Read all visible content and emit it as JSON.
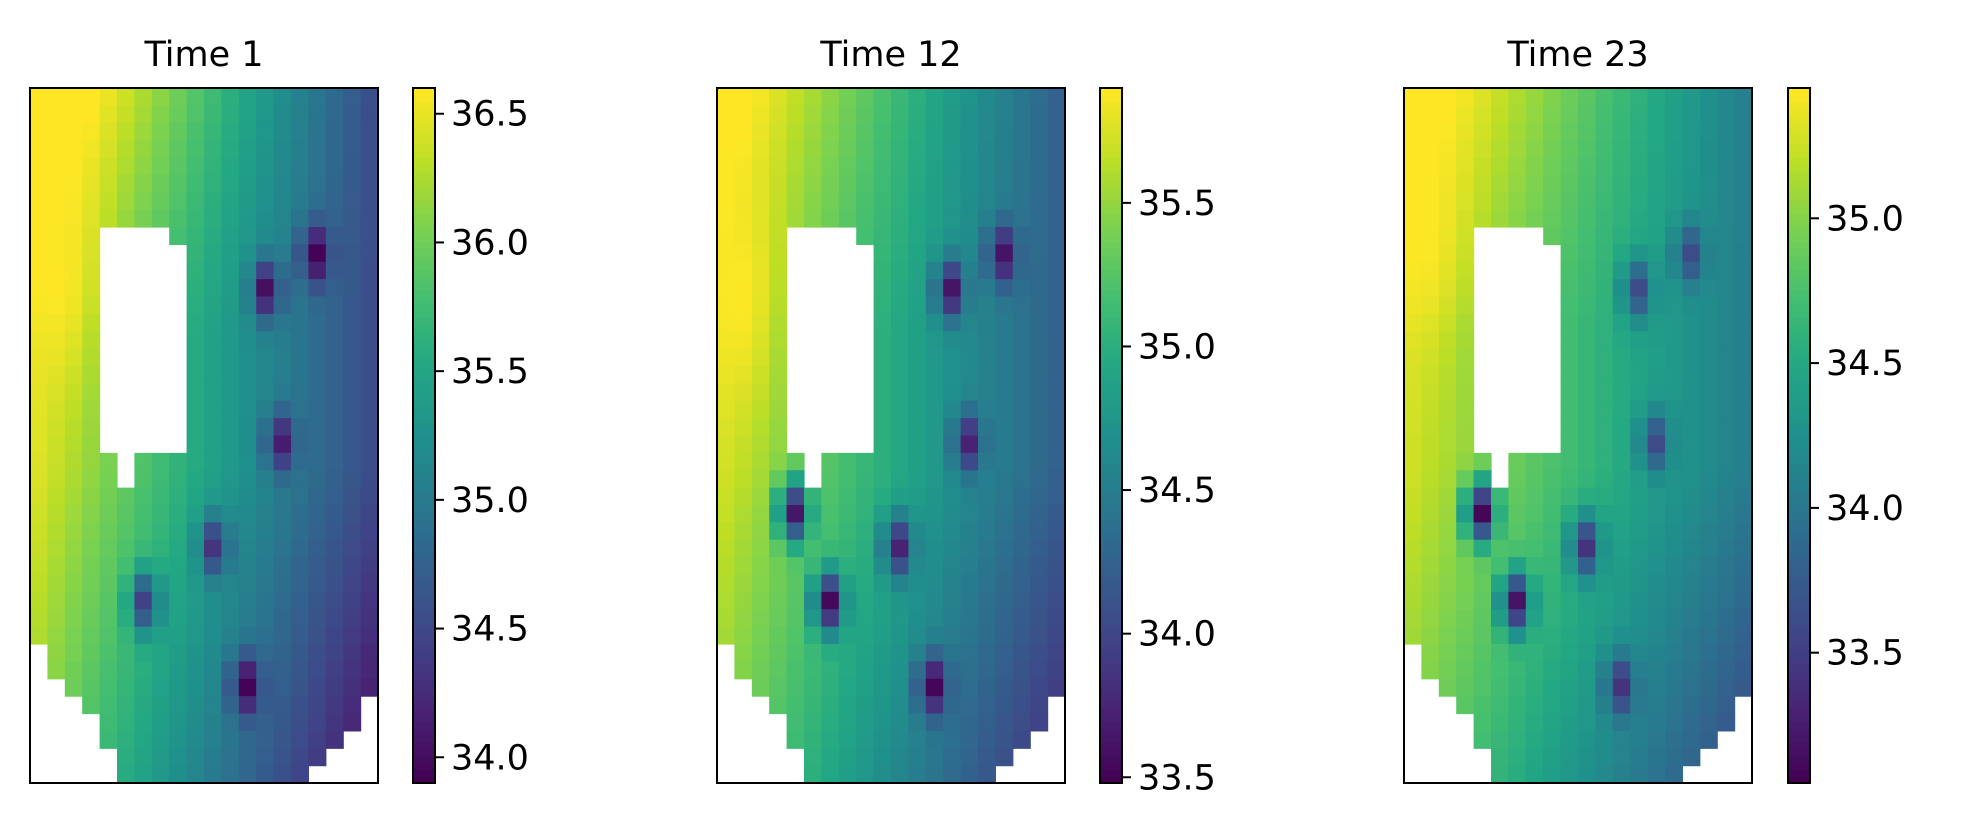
{
  "chart_data": [
    {
      "type": "heatmap",
      "title": "Time 1",
      "xlabel": "",
      "ylabel": "",
      "colormap": "viridis",
      "grid": false,
      "colorbar": {
        "vmin": 33.9,
        "vmax": 36.6,
        "ticks": [
          "34.0",
          "34.5",
          "35.0",
          "35.5",
          "36.0",
          "36.5"
        ]
      },
      "field": {
        "west_value": 36.5,
        "north_value": 35.2,
        "east_value": 34.5,
        "south_value": 33.95,
        "hotspot_center": [
          0.08,
          0.27
        ],
        "hotspot_value": 36.6
      },
      "minima": [
        {
          "x": 0.82,
          "y": 0.24,
          "value": 33.9
        },
        {
          "x": 0.68,
          "y": 0.29,
          "value": 34.0
        },
        {
          "x": 0.72,
          "y": 0.51,
          "value": 34.1
        },
        {
          "x": 0.53,
          "y": 0.66,
          "value": 34.3
        },
        {
          "x": 0.33,
          "y": 0.74,
          "value": 34.4
        },
        {
          "x": 0.62,
          "y": 0.86,
          "value": 33.9
        }
      ]
    },
    {
      "type": "heatmap",
      "title": "Time 12",
      "xlabel": "",
      "ylabel": "",
      "colormap": "viridis",
      "grid": false,
      "colorbar": {
        "vmin": 33.48,
        "vmax": 35.9,
        "ticks": [
          "33.5",
          "34.0",
          "34.5",
          "35.0",
          "35.5"
        ]
      },
      "field": {
        "west_value": 35.75,
        "north_value": 34.6,
        "east_value": 34.2,
        "south_value": 33.75,
        "hotspot_center": [
          0.06,
          0.3
        ],
        "hotspot_value": 35.9
      },
      "minima": [
        {
          "x": 0.82,
          "y": 0.24,
          "value": 33.6
        },
        {
          "x": 0.67,
          "y": 0.29,
          "value": 33.6
        },
        {
          "x": 0.72,
          "y": 0.51,
          "value": 33.7
        },
        {
          "x": 0.22,
          "y": 0.61,
          "value": 33.6
        },
        {
          "x": 0.52,
          "y": 0.66,
          "value": 33.7
        },
        {
          "x": 0.32,
          "y": 0.74,
          "value": 33.5
        },
        {
          "x": 0.62,
          "y": 0.86,
          "value": 33.5
        }
      ]
    },
    {
      "type": "heatmap",
      "title": "Time 23",
      "xlabel": "",
      "ylabel": "",
      "colormap": "viridis",
      "grid": false,
      "colorbar": {
        "vmin": 33.05,
        "vmax": 35.45,
        "ticks": [
          "33.5",
          "34.0",
          "34.5",
          "35.0"
        ]
      },
      "field": {
        "west_value": 35.3,
        "north_value": 34.5,
        "east_value": 34.05,
        "south_value": 33.55,
        "hotspot_center": [
          0.05,
          0.2
        ],
        "hotspot_value": 35.45
      },
      "minima": [
        {
          "x": 0.82,
          "y": 0.24,
          "value": 33.6
        },
        {
          "x": 0.67,
          "y": 0.29,
          "value": 33.6
        },
        {
          "x": 0.72,
          "y": 0.51,
          "value": 33.6
        },
        {
          "x": 0.22,
          "y": 0.61,
          "value": 33.05
        },
        {
          "x": 0.52,
          "y": 0.66,
          "value": 33.4
        },
        {
          "x": 0.32,
          "y": 0.74,
          "value": 33.15
        },
        {
          "x": 0.62,
          "y": 0.86,
          "value": 33.4
        }
      ]
    }
  ]
}
